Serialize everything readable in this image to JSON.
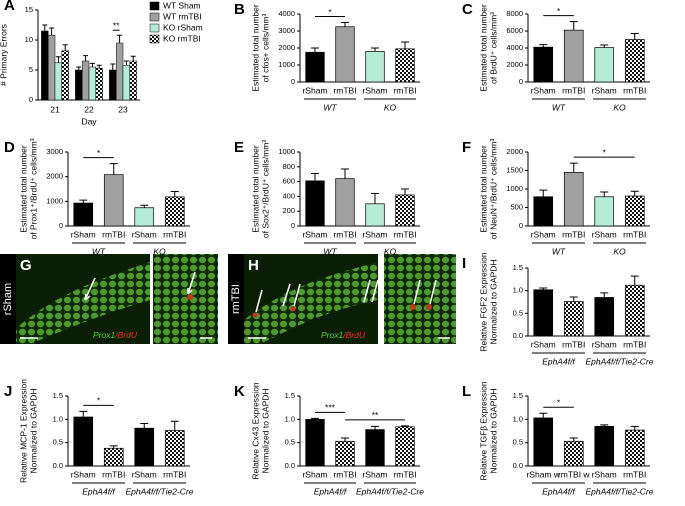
{
  "chart_data": [
    {
      "type": "grouped_bar",
      "panel": "A",
      "ylabel": [
        "# Primary Errors"
      ],
      "xlabel": "Day",
      "categories": [
        "21",
        "22",
        "23"
      ],
      "series": [
        {
          "name": "WT Sham",
          "color": "#000000",
          "values": [
            11.5,
            5.0,
            5.0
          ],
          "errors": [
            1.0,
            0.5,
            1.0
          ]
        },
        {
          "name": "WT rmTBI",
          "color": "#a0a0a0",
          "values": [
            10.8,
            6.5,
            9.5
          ],
          "errors": [
            1.2,
            0.9,
            1.3
          ]
        },
        {
          "name": "KO rSham",
          "color": "#b4ecd7",
          "values": [
            6.2,
            5.5,
            5.8
          ],
          "errors": [
            1.0,
            0.6,
            0.7
          ]
        },
        {
          "name": "KO rmTBI",
          "color": "checker",
          "values": [
            8.2,
            5.3,
            6.5
          ],
          "errors": [
            1.0,
            0.5,
            0.8
          ]
        }
      ],
      "annotations": [
        {
          "text": "**",
          "category": 2,
          "span": [
            0,
            1
          ]
        }
      ],
      "ylim": [
        0,
        15
      ],
      "yticks": [
        0,
        5,
        10,
        15
      ]
    },
    {
      "type": "bar",
      "panel": "B",
      "ylabel": [
        "Estimated total number",
        "of cfos+ cells/mm³"
      ],
      "categories": [
        "rSham",
        "rmTBI",
        "rSham",
        "rmTBI"
      ],
      "groups": [
        "WT",
        "KO"
      ],
      "values": [
        1750,
        3250,
        1800,
        1950
      ],
      "errors": [
        250,
        250,
        200,
        400
      ],
      "fills": [
        "#000000",
        "#a0a0a0",
        "#b4ecd7",
        "checker"
      ],
      "annotations": [
        {
          "text": "*",
          "span": [
            0,
            1
          ]
        }
      ],
      "ylim": [
        0,
        4000
      ],
      "yticks": [
        0,
        1000,
        2000,
        3000,
        4000
      ]
    },
    {
      "type": "bar",
      "panel": "C",
      "ylabel": [
        "Estimated total number",
        "of BrdU⁺ cells/mm³"
      ],
      "categories": [
        "rSham",
        "rmTBI",
        "rSham",
        "rmTBI"
      ],
      "groups": [
        "WT",
        "KO"
      ],
      "values": [
        4100,
        6100,
        4050,
        5000
      ],
      "errors": [
        300,
        1000,
        300,
        700
      ],
      "fills": [
        "#000000",
        "#a0a0a0",
        "#b4ecd7",
        "checker"
      ],
      "annotations": [
        {
          "text": "*",
          "span": [
            0,
            1
          ]
        }
      ],
      "ylim": [
        0,
        8000
      ],
      "yticks": [
        0,
        2000,
        4000,
        6000,
        8000
      ]
    },
    {
      "type": "bar",
      "panel": "D",
      "ylabel": [
        "Estimated total number",
        "of Prox1⁺/BrdU⁺ cells/mm³"
      ],
      "categories": [
        "rSham",
        "rmTBI",
        "rSham",
        "rmTBI"
      ],
      "groups": [
        "WT",
        "KO"
      ],
      "values": [
        930,
        2080,
        740,
        1180
      ],
      "errors": [
        120,
        450,
        100,
        220
      ],
      "fills": [
        "#000000",
        "#a0a0a0",
        "#b4ecd7",
        "checker"
      ],
      "annotations": [
        {
          "text": "*",
          "span": [
            0,
            1
          ]
        }
      ],
      "ylim": [
        0,
        3000
      ],
      "yticks": [
        0,
        1000,
        2000,
        3000
      ]
    },
    {
      "type": "bar",
      "panel": "E",
      "ylabel": [
        "Estimated total number",
        "of Sox2⁺/BrdU⁺ cells/mm³"
      ],
      "categories": [
        "rSham",
        "rmTBI",
        "rSham",
        "rmTBI"
      ],
      "groups": [
        "WT",
        "KO"
      ],
      "values": [
        610,
        640,
        300,
        420
      ],
      "errors": [
        100,
        130,
        140,
        80
      ],
      "fills": [
        "#000000",
        "#a0a0a0",
        "#b4ecd7",
        "checker"
      ],
      "annotations": [],
      "ylim": [
        0,
        1000
      ],
      "yticks": [
        0,
        200,
        400,
        600,
        800,
        1000
      ]
    },
    {
      "type": "bar",
      "panel": "F",
      "ylabel": [
        "Estimated total number",
        "of NeuN⁺/BrdU⁺ cells/mm³"
      ],
      "categories": [
        "rSham",
        "rmTBI",
        "rSham",
        "rmTBI"
      ],
      "groups": [
        "WT",
        "KO"
      ],
      "values": [
        790,
        1450,
        790,
        810
      ],
      "errors": [
        180,
        250,
        130,
        130
      ],
      "fills": [
        "#000000",
        "#a0a0a0",
        "#b4ecd7",
        "checker"
      ],
      "annotations": [
        {
          "text": "*",
          "span": [
            1,
            3
          ]
        }
      ],
      "ylim": [
        0,
        2000
      ],
      "yticks": [
        0,
        500,
        1000,
        1500,
        2000
      ]
    },
    {
      "type": "bar",
      "panel": "I",
      "ylabel": [
        "Relative FGF2 Expression",
        "Normalized to GAPDH"
      ],
      "categories": [
        "rSham",
        "rmTBI",
        "rSham",
        "rmTBI"
      ],
      "groups": [
        "EphA4f/f",
        "EphA4f/f/Tie2-Cre"
      ],
      "values": [
        1.02,
        0.76,
        0.85,
        1.12
      ],
      "errors": [
        0.04,
        0.1,
        0.1,
        0.2
      ],
      "fills": [
        "#000000",
        "checker",
        "#000000",
        "checker"
      ],
      "annotations": [],
      "ylim": [
        0,
        1.5
      ],
      "yticks": [
        {
          "value": 0,
          "label": "0.0"
        },
        0.5,
        {
          "value": 1,
          "label": "1.0"
        },
        1.5
      ]
    },
    {
      "type": "bar",
      "panel": "J",
      "ylabel": [
        "Relative MCP-1 Expression",
        "Normalized to GAPDH"
      ],
      "categories": [
        "rSham",
        "rmTBI",
        "rSham",
        "rmTBI"
      ],
      "groups": [
        "EphA4f/f",
        "EphA4f/f/Tie2-Cre"
      ],
      "values": [
        1.05,
        0.38,
        0.81,
        0.76
      ],
      "errors": [
        0.12,
        0.05,
        0.1,
        0.2
      ],
      "fills": [
        "#000000",
        "checker",
        "#000000",
        "checker"
      ],
      "annotations": [
        {
          "text": "*",
          "span": [
            0,
            1
          ]
        }
      ],
      "ylim": [
        0,
        1.5
      ],
      "yticks": [
        {
          "value": 0,
          "label": "0.0"
        },
        0.5,
        {
          "value": 1,
          "label": "1.0"
        },
        1.5
      ]
    },
    {
      "type": "bar",
      "panel": "K",
      "ylabel": [
        "Relative Cx43 Expression",
        "Normalized to GAPDH"
      ],
      "categories": [
        "rSham",
        "rmTBI",
        "rSham",
        "rmTBI"
      ],
      "groups": [
        "EphA4f/f",
        "EphA4f/f/Tie2-Cre"
      ],
      "values": [
        1.0,
        0.53,
        0.78,
        0.84
      ],
      "errors": [
        0.02,
        0.07,
        0.07,
        0.02
      ],
      "fills": [
        "#000000",
        "checker",
        "#000000",
        "checker"
      ],
      "annotations": [
        {
          "text": "***",
          "span": [
            0,
            1
          ]
        },
        {
          "text": "**",
          "span": [
            1,
            3
          ]
        }
      ],
      "ylim": [
        0,
        1.5
      ],
      "yticks": [
        {
          "value": 0,
          "label": "0.0"
        },
        0.5,
        {
          "value": 1,
          "label": "1.0"
        },
        1.5
      ]
    },
    {
      "type": "bar",
      "panel": "L",
      "ylabel": [
        "Relative TGFβ Expression",
        "Normalized to GAPDH"
      ],
      "categories": [
        "rSham w",
        "rmTBI w",
        "rSham",
        "rmTBI"
      ],
      "groups": [
        "EphA4f/f",
        "EphA4f/f/Tie2-Cre"
      ],
      "values": [
        1.03,
        0.53,
        0.85,
        0.77
      ],
      "errors": [
        0.1,
        0.07,
        0.03,
        0.08
      ],
      "fills": [
        "#000000",
        "checker",
        "#000000",
        "checker"
      ],
      "annotations": [
        {
          "text": "*",
          "span": [
            0,
            1
          ]
        }
      ],
      "ylim": [
        0,
        1.5
      ],
      "yticks": [
        {
          "value": 0,
          "label": "0.0"
        },
        0.5,
        {
          "value": 1,
          "label": "1.0"
        },
        1.5
      ]
    }
  ],
  "images": [
    {
      "panel": "G",
      "group": "rSham",
      "stain": [
        "Prox1",
        "/BrdU"
      ]
    },
    {
      "panel": "H",
      "group": "rmTBI",
      "stain": [
        "Prox1",
        "/BrdU"
      ]
    }
  ]
}
